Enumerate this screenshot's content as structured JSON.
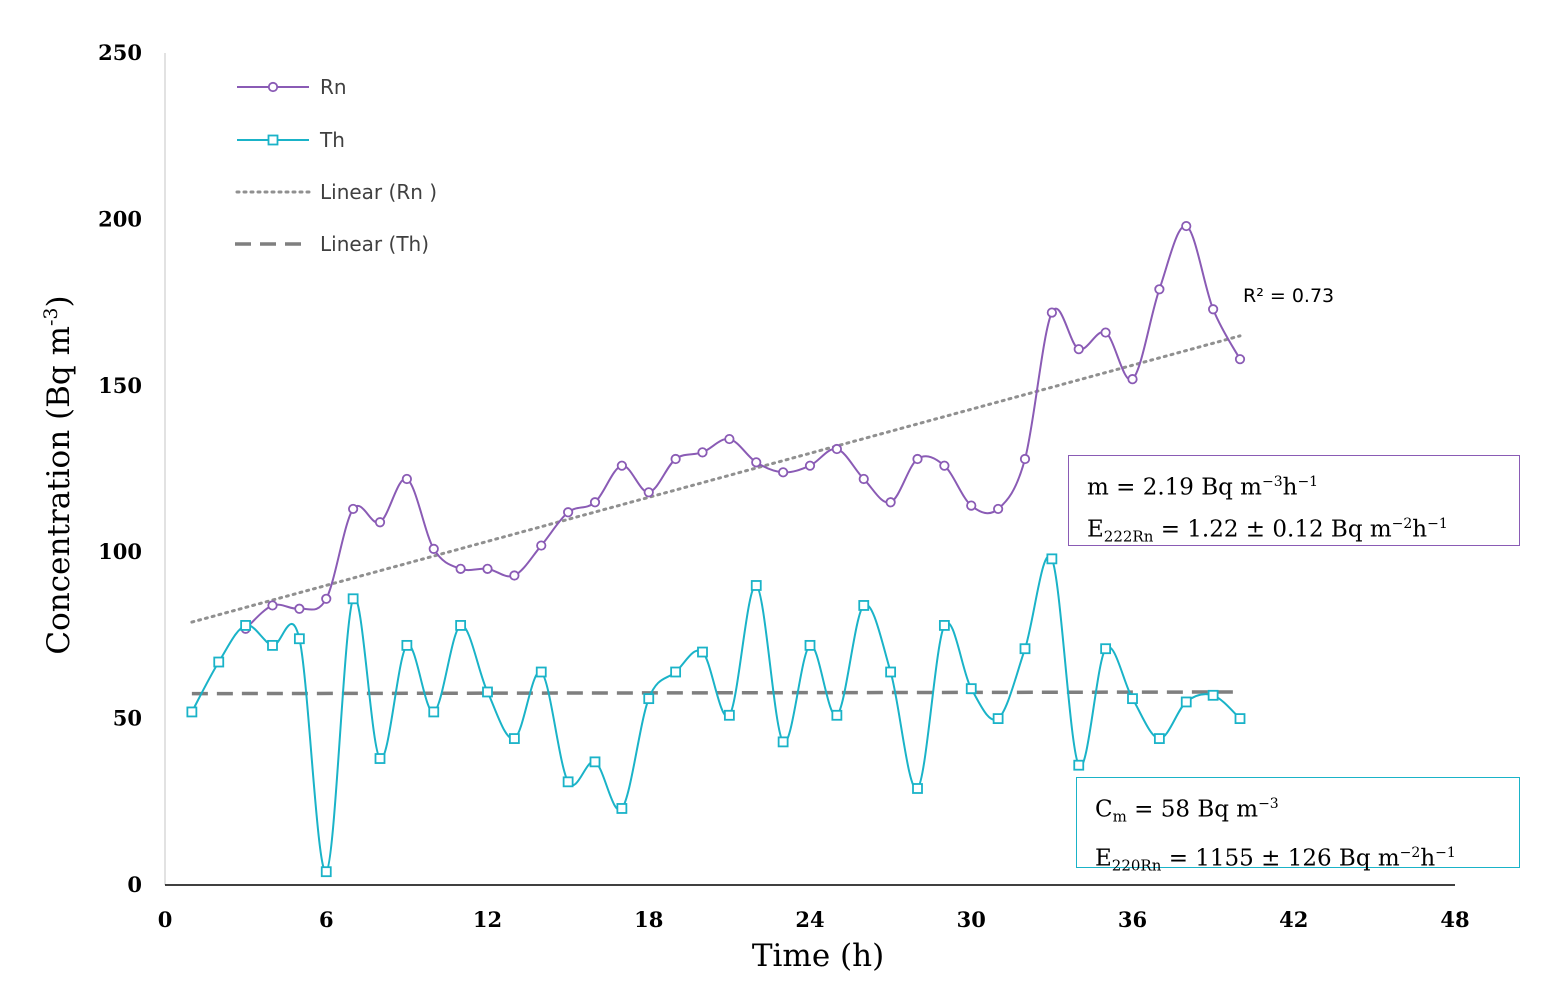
{
  "chart_data": {
    "type": "line",
    "title": "",
    "xlabel": "Time (h)",
    "ylabel": "Concentration (Bq m-3)",
    "ylabel_base": "Concentration (Bq m",
    "ylabel_sup": "-3",
    "ylabel_end": ")",
    "xlim": [
      0,
      48
    ],
    "ylim": [
      0,
      250
    ],
    "x_ticks": [
      "0",
      "6",
      "12",
      "18",
      "24",
      "30",
      "36",
      "42",
      "48"
    ],
    "y_ticks": [
      "0",
      "50",
      "100",
      "150",
      "200",
      "250"
    ],
    "x": [
      1,
      2,
      3,
      4,
      5,
      6,
      7,
      8,
      9,
      10,
      11,
      12,
      13,
      14,
      15,
      16,
      17,
      18,
      19,
      20,
      21,
      22,
      23,
      24,
      25,
      26,
      27,
      28,
      29,
      30,
      31,
      32,
      33,
      34,
      35,
      36,
      37,
      38,
      39,
      40
    ],
    "series": [
      {
        "name": "Rn",
        "color": "#8a5bb5",
        "marker": "circle",
        "values": [
          null,
          null,
          77,
          84,
          83,
          86,
          113,
          109,
          122,
          101,
          95,
          95,
          93,
          102,
          112,
          115,
          126,
          118,
          128,
          130,
          134,
          127,
          124,
          126,
          131,
          122,
          115,
          128,
          126,
          114,
          113,
          128,
          172,
          161,
          166,
          152,
          179,
          198,
          173,
          158
        ]
      },
      {
        "name": "Th",
        "color": "#1ab3c8",
        "marker": "square",
        "values": [
          52,
          67,
          78,
          72,
          74,
          4,
          86,
          38,
          72,
          52,
          78,
          58,
          44,
          64,
          31,
          37,
          23,
          56,
          64,
          70,
          51,
          90,
          43,
          72,
          51,
          84,
          64,
          29,
          78,
          59,
          50,
          71,
          98,
          36,
          71,
          56,
          44,
          55,
          57,
          50
        ]
      }
    ],
    "trendlines": [
      {
        "name": "Linear (Rn )",
        "style": "dotted",
        "color": "#909090",
        "x_range": [
          1,
          40
        ],
        "y_range": [
          79,
          165
        ],
        "r2_label": "R² = 0.73"
      },
      {
        "name": "Linear (Th)",
        "style": "dashed",
        "color": "#7f7f7f",
        "x_range": [
          1,
          40
        ],
        "y_range": [
          57.5,
          58
        ]
      }
    ],
    "legend": [
      "Rn",
      "Th",
      "Linear (Rn )",
      "Linear (Th)"
    ],
    "legend_position": "top-left",
    "annotations": {
      "rn_box": {
        "m_label": "m = 2.19 Bq m",
        "m_exp": "−3",
        "m_unit": "h",
        "m_exp2": "−1",
        "e_label": "E",
        "e_sub": "222Rn",
        "e_value": " = 1.22 ± 0.12 Bq m",
        "e_exp": "−2",
        "e_unit": "h",
        "e_exp2": "−1"
      },
      "th_box": {
        "c_label": "C",
        "c_sub": "m",
        "c_value": " = 58 Bq m",
        "c_exp": "−3",
        "e_label": "E",
        "e_sub": "220Rn",
        "e_value": " = 1155 ± 126 Bq m",
        "e_exp": "−2",
        "e_unit": "h",
        "e_exp2": "−1"
      }
    }
  }
}
